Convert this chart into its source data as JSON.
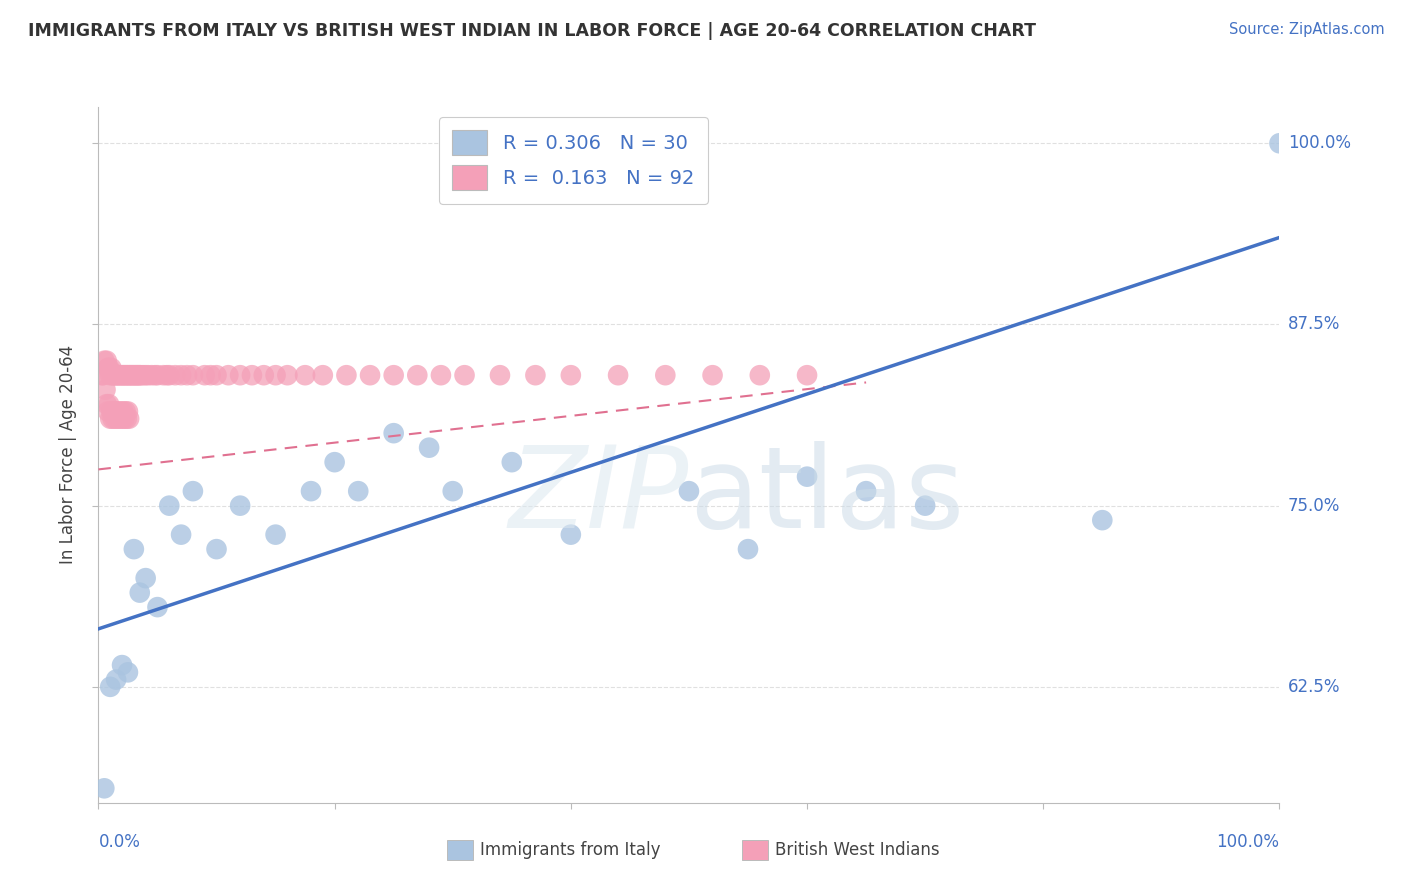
{
  "title": "IMMIGRANTS FROM ITALY VS BRITISH WEST INDIAN IN LABOR FORCE | AGE 20-64 CORRELATION CHART",
  "source": "Source: ZipAtlas.com",
  "ylabel": "In Labor Force | Age 20-64",
  "ytick_labels": [
    "62.5%",
    "75.0%",
    "87.5%",
    "100.0%"
  ],
  "ytick_values": [
    0.625,
    0.75,
    0.875,
    1.0
  ],
  "legend_italy_text": "R = 0.306   N = 30",
  "legend_bwi_text": "R =  0.163   N = 92",
  "italy_color": "#aac4e0",
  "italy_color_line": "#4472c4",
  "bwi_color": "#f4a0b8",
  "bwi_color_line": "#e07090",
  "italy_scatter_x": [
    0.005,
    0.01,
    0.015,
    0.02,
    0.025,
    0.03,
    0.035,
    0.04,
    0.05,
    0.06,
    0.07,
    0.08,
    0.1,
    0.12,
    0.15,
    0.18,
    0.2,
    0.22,
    0.25,
    0.28,
    0.3,
    0.35,
    0.4,
    0.5,
    0.55,
    0.6,
    0.65,
    0.7,
    0.85,
    1.0
  ],
  "italy_scatter_y": [
    0.555,
    0.625,
    0.63,
    0.64,
    0.635,
    0.72,
    0.69,
    0.7,
    0.68,
    0.75,
    0.73,
    0.76,
    0.72,
    0.75,
    0.73,
    0.76,
    0.78,
    0.76,
    0.8,
    0.79,
    0.76,
    0.78,
    0.73,
    0.76,
    0.72,
    0.77,
    0.76,
    0.75,
    0.74,
    1.0
  ],
  "bwi_scatter_x": [
    0.003,
    0.004,
    0.005,
    0.006,
    0.007,
    0.007,
    0.008,
    0.008,
    0.009,
    0.009,
    0.01,
    0.01,
    0.011,
    0.011,
    0.012,
    0.012,
    0.013,
    0.013,
    0.014,
    0.014,
    0.015,
    0.015,
    0.016,
    0.016,
    0.017,
    0.017,
    0.018,
    0.018,
    0.019,
    0.019,
    0.02,
    0.02,
    0.021,
    0.021,
    0.022,
    0.022,
    0.023,
    0.023,
    0.024,
    0.024,
    0.025,
    0.025,
    0.026,
    0.026,
    0.027,
    0.028,
    0.029,
    0.03,
    0.031,
    0.032,
    0.033,
    0.034,
    0.035,
    0.036,
    0.038,
    0.04,
    0.042,
    0.045,
    0.048,
    0.05,
    0.055,
    0.058,
    0.06,
    0.065,
    0.07,
    0.075,
    0.08,
    0.09,
    0.095,
    0.1,
    0.11,
    0.12,
    0.13,
    0.14,
    0.15,
    0.16,
    0.175,
    0.19,
    0.21,
    0.23,
    0.25,
    0.27,
    0.29,
    0.31,
    0.34,
    0.37,
    0.4,
    0.44,
    0.48,
    0.52,
    0.56,
    0.6
  ],
  "bwi_scatter_y": [
    0.84,
    0.84,
    0.85,
    0.83,
    0.85,
    0.82,
    0.845,
    0.815,
    0.845,
    0.82,
    0.84,
    0.81,
    0.845,
    0.815,
    0.84,
    0.81,
    0.84,
    0.815,
    0.84,
    0.81,
    0.84,
    0.815,
    0.84,
    0.81,
    0.84,
    0.815,
    0.84,
    0.81,
    0.84,
    0.815,
    0.84,
    0.81,
    0.84,
    0.815,
    0.84,
    0.81,
    0.84,
    0.815,
    0.84,
    0.81,
    0.84,
    0.815,
    0.84,
    0.81,
    0.84,
    0.84,
    0.84,
    0.84,
    0.84,
    0.84,
    0.84,
    0.84,
    0.84,
    0.84,
    0.84,
    0.84,
    0.84,
    0.84,
    0.84,
    0.84,
    0.84,
    0.84,
    0.84,
    0.84,
    0.84,
    0.84,
    0.84,
    0.84,
    0.84,
    0.84,
    0.84,
    0.84,
    0.84,
    0.84,
    0.84,
    0.84,
    0.84,
    0.84,
    0.84,
    0.84,
    0.84,
    0.84,
    0.84,
    0.84,
    0.84,
    0.84,
    0.84,
    0.84,
    0.84,
    0.84,
    0.84,
    0.84
  ],
  "xlim": [
    0.0,
    1.0
  ],
  "ylim": [
    0.545,
    1.025
  ],
  "italy_line_x": [
    0.0,
    1.0
  ],
  "italy_line_y": [
    0.665,
    0.935
  ],
  "bwi_line_x": [
    0.0,
    0.65
  ],
  "bwi_line_y": [
    0.775,
    0.835
  ],
  "background_color": "#ffffff",
  "grid_color": "#e0e0e0"
}
